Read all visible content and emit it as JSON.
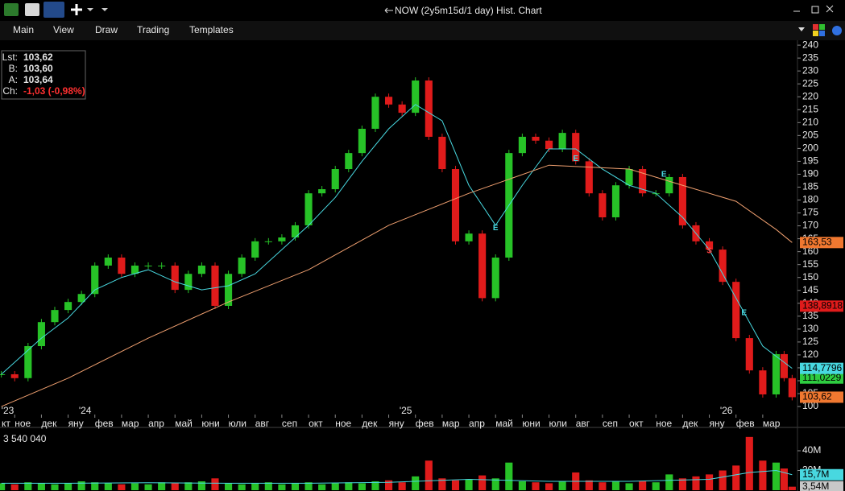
{
  "header": {
    "title": "NOW (2y5m15d/1 day) Hist. Chart"
  },
  "menu": [
    "Main",
    "View",
    "Draw",
    "Trading",
    "Templates"
  ],
  "quote": [
    {
      "label": "Lst:",
      "value": "103,62"
    },
    {
      "label": "B:",
      "value": "103,60"
    },
    {
      "label": "A:",
      "value": "103,64"
    },
    {
      "label": "Ch:",
      "value": "-1,03 (-0,98%)"
    }
  ],
  "chart_data": [
    {
      "type": "candle",
      "up_color": "#27c227",
      "down_color": "#e01b1b",
      "x": [
        0.5,
        1,
        1.5,
        2,
        2.5,
        3,
        3.5,
        4,
        4.5,
        5,
        5.5,
        6,
        6.5,
        7,
        7.5,
        8,
        8.5,
        9,
        9.5,
        10,
        10.5,
        11,
        11.5,
        12,
        12.5,
        13,
        13.5,
        14,
        14.5,
        15,
        15.5,
        16,
        16.5,
        17,
        17.5,
        18,
        18.5,
        19,
        19.5,
        20,
        20.5,
        21,
        21.5,
        22,
        22.5,
        23,
        23.5,
        24,
        24.5,
        25,
        25.5,
        26,
        26.5,
        27,
        27.5,
        28,
        28.5,
        29,
        29.5,
        29.8,
        30.1
      ],
      "values": [
        112.5,
        111,
        123.4,
        132.7,
        137.4,
        140.5,
        143.6,
        154.6,
        157.7,
        151.4,
        154.6,
        154.6,
        154.6,
        145.2,
        151.4,
        154.6,
        139,
        151.4,
        157.7,
        164,
        164,
        165.5,
        170.2,
        182.6,
        184.2,
        192,
        198.2,
        207.6,
        220,
        217,
        213.8,
        226.3,
        204.5,
        192,
        164,
        167,
        142,
        157.7,
        198.2,
        204.5,
        203,
        199.8,
        206,
        195,
        182.6,
        173.3,
        185.7,
        192,
        182.6,
        182.6,
        188.9,
        170.2,
        164,
        160.8,
        148.3,
        126.5,
        114,
        104.7,
        120.3,
        111,
        103.62
      ],
      "lines": [
        {
          "color": "#48d8e0",
          "x": [
            0.5,
            2,
            3,
            4,
            5,
            6,
            7,
            8,
            9,
            10,
            11,
            12,
            13,
            14,
            15,
            16,
            17,
            18,
            19,
            20,
            21,
            22,
            23,
            24,
            25,
            26,
            27,
            28,
            29,
            30.1
          ],
          "values": [
            112.5,
            126.5,
            134.3,
            145.2,
            150,
            153,
            148.3,
            145.2,
            146.8,
            151.4,
            160.8,
            170.2,
            181,
            195,
            207.6,
            217,
            210.7,
            185.7,
            170.2,
            185.7,
            199.8,
            199.8,
            192,
            185.7,
            182.6,
            173.3,
            160.8,
            142,
            123.4,
            114.8
          ]
        },
        {
          "color": "#f0a070",
          "x": [
            0.5,
            3,
            6,
            9,
            12,
            15,
            18,
            21,
            24,
            26,
            28,
            29.5,
            30.1
          ],
          "values": [
            100,
            111,
            126.5,
            140.5,
            153,
            170.2,
            182.6,
            193.5,
            192,
            185.7,
            179.5,
            168.6,
            163.53
          ]
        }
      ],
      "annotations": [
        {
          "x": 19.0,
          "y": 169.2,
          "label": "E",
          "color": "#48d8e0"
        },
        {
          "x": 22.0,
          "y": 196,
          "label": "E",
          "color": "#48d8e0"
        },
        {
          "x": 25.3,
          "y": 189.8,
          "label": "E",
          "color": "#48d8e0"
        },
        {
          "x": 27.0,
          "y": 160.2,
          "label": "S",
          "color": "#ff4040"
        },
        {
          "x": 28.3,
          "y": 136.2,
          "label": "E",
          "color": "#48d8e0"
        }
      ],
      "xlim": [
        0.45,
        30.3
      ],
      "ylim": [
        96.9,
        241.9
      ],
      "yticks": [
        100,
        105,
        110,
        115,
        120,
        125,
        130,
        135,
        140,
        145,
        150,
        155,
        160,
        165,
        170,
        175,
        180,
        185,
        190,
        195,
        200,
        205,
        210,
        215,
        220,
        225,
        230,
        235,
        240
      ],
      "xticks": [
        {
          "value": 0,
          "label": "кт"
        },
        {
          "value": 1,
          "label": "ное"
        },
        {
          "value": 2,
          "label": "дек"
        },
        {
          "value": 3,
          "label": "яну"
        },
        {
          "value": 4,
          "label": "фев"
        },
        {
          "value": 5,
          "label": "мар"
        },
        {
          "value": 6,
          "label": "апр"
        },
        {
          "value": 7,
          "label": "май"
        },
        {
          "value": 8,
          "label": "юни"
        },
        {
          "value": 9,
          "label": "юли"
        },
        {
          "value": 10,
          "label": "авг"
        },
        {
          "value": 11,
          "label": "сеп"
        },
        {
          "value": 12,
          "label": "окт"
        },
        {
          "value": 13,
          "label": "ное"
        },
        {
          "value": 14,
          "label": "дек"
        },
        {
          "value": 15,
          "label": "яну"
        },
        {
          "value": 16,
          "label": "фев"
        },
        {
          "value": 17,
          "label": "мар"
        },
        {
          "value": 18,
          "label": "апр"
        },
        {
          "value": 19,
          "label": "май"
        },
        {
          "value": 20,
          "label": "юни"
        },
        {
          "value": 21,
          "label": "юли"
        },
        {
          "value": 22,
          "label": "авг"
        },
        {
          "value": 23,
          "label": "сеп"
        },
        {
          "value": 24,
          "label": "окт"
        },
        {
          "value": 25,
          "label": "ное"
        },
        {
          "value": 26,
          "label": "дек"
        },
        {
          "value": 27,
          "label": "яну"
        },
        {
          "value": 28,
          "label": "фев"
        },
        {
          "value": 29,
          "label": "мар"
        }
      ],
      "year_labels": [
        {
          "value": 0.5,
          "label": "'23"
        },
        {
          "value": 3.4,
          "label": "'24"
        },
        {
          "value": 15.4,
          "label": "'25"
        },
        {
          "value": 27.4,
          "label": "'26"
        }
      ],
      "price_tags": [
        {
          "value": 163.53,
          "label": "163,53",
          "color": "#f07830"
        },
        {
          "value": 138.8918,
          "label": "138,8918",
          "color": "#e01b1b"
        },
        {
          "value": 111.0229,
          "label": "111,0229",
          "color": "#2ecc40"
        },
        {
          "value": 114.7796,
          "label": "114,7796",
          "color": "#48d8e0"
        },
        {
          "value": 103.62,
          "label": "103,62",
          "color": "#f07830"
        }
      ]
    },
    {
      "type": "bar",
      "current": {
        "value": 3540040,
        "label": "3 540 040"
      },
      "values": [
        7000000,
        6000000,
        8000000,
        7000000,
        6000000,
        7000000,
        9000000,
        8000000,
        7000000,
        6000000,
        7000000,
        6000000,
        8000000,
        7000000,
        8000000,
        9000000,
        12000000,
        7000000,
        6000000,
        7000000,
        8000000,
        6000000,
        7000000,
        8000000,
        6000000,
        7000000,
        8000000,
        7000000,
        9000000,
        10000000,
        8000000,
        14000000,
        30000000,
        12000000,
        10000000,
        11000000,
        15000000,
        12000000,
        28000000,
        9000000,
        8000000,
        7000000,
        9000000,
        18000000,
        10000000,
        8000000,
        9000000,
        7000000,
        9000000,
        8000000,
        16000000,
        12000000,
        14000000,
        16000000,
        20000000,
        25000000,
        54000000,
        30000000,
        28000000,
        22000000,
        3540040
      ],
      "line": {
        "color": "#48d8e0",
        "x": [
          0.5,
          3,
          6,
          9,
          12,
          15,
          18,
          21,
          24,
          27,
          28.5,
          29.5,
          30.1
        ],
        "values": [
          7000000,
          7000000,
          7500000,
          7000000,
          7000000,
          8000000,
          11000000,
          9000000,
          9000000,
          11000000,
          18000000,
          20000000,
          15700000
        ]
      },
      "ylim": [
        0,
        60400000
      ],
      "yticks": [
        {
          "value": 20000000,
          "label": "20M"
        },
        {
          "value": 40000000,
          "label": "40M"
        }
      ],
      "price_tags": [
        {
          "value": 15700000,
          "label": "15,7M",
          "color": "#48d8e0"
        },
        {
          "value": 3540000,
          "label": "3,54M",
          "color": "#c8c8c8"
        }
      ]
    }
  ]
}
